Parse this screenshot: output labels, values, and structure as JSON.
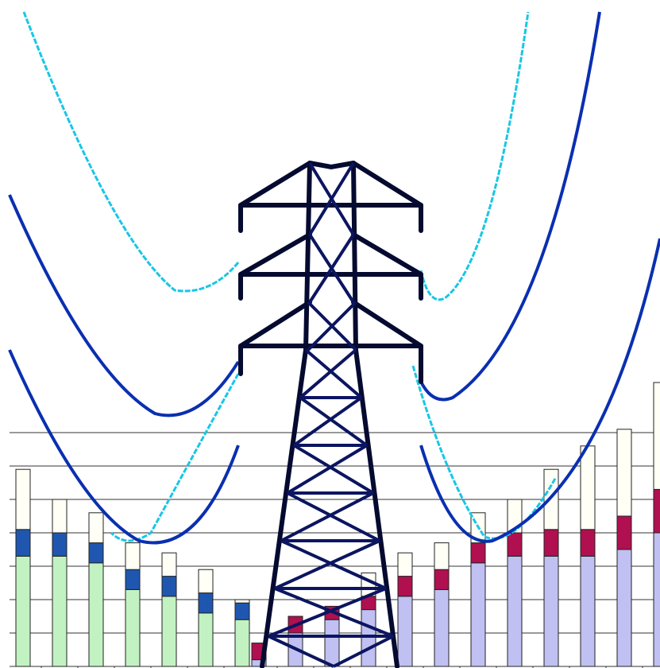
{
  "chart_data": {
    "type": "bar",
    "stacked": true,
    "series": [
      {
        "color": "#c2f2c2",
        "values": [
          3.3,
          3.3,
          3.1,
          2.3,
          2.1,
          1.6,
          1.4,
          0,
          0,
          0,
          0,
          0,
          0,
          0,
          0,
          0,
          0,
          0,
          0
        ]
      },
      {
        "color": "#1f57b0",
        "values": [
          0.8,
          0.7,
          0.6,
          0.6,
          0.6,
          0.6,
          0.5,
          0,
          0,
          0,
          0,
          0,
          0,
          0,
          0,
          0,
          0,
          0,
          0
        ]
      },
      {
        "color": "#c0c0f2",
        "values": [
          0,
          0,
          0,
          0,
          0,
          0,
          0,
          0.2,
          1.0,
          1.4,
          1.7,
          2.1,
          2.3,
          3.1,
          3.3,
          3.3,
          3.3,
          3.5,
          4.0
        ]
      },
      {
        "color": "#b0104f",
        "values": [
          0,
          0,
          0,
          0,
          0,
          0,
          0,
          0.5,
          0.5,
          0.4,
          0.4,
          0.6,
          0.6,
          0.6,
          0.7,
          0.8,
          0.8,
          1.0,
          1.3
        ]
      },
      {
        "color": "#fffff6",
        "values": [
          1.8,
          1.0,
          0.9,
          0.8,
          0.7,
          0.7,
          0.1,
          0,
          0,
          0,
          0.7,
          0.7,
          0.8,
          0.9,
          1.0,
          1.8,
          2.5,
          2.6,
          3.2
        ]
      }
    ],
    "ylim": [
      0,
      8
    ],
    "yticks": [
      1,
      2,
      3,
      4,
      5,
      6,
      7
    ],
    "grid": true
  }
}
